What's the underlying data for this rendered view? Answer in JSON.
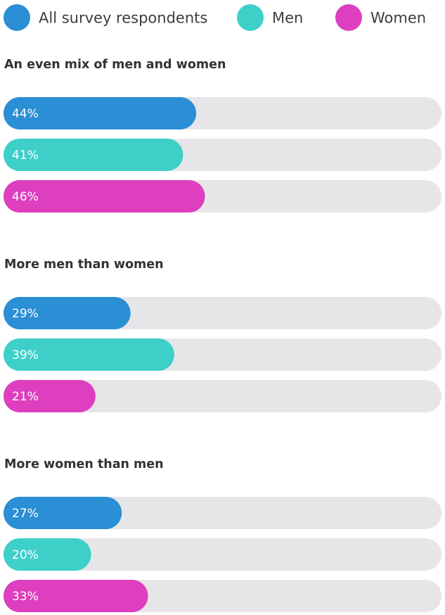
{
  "chart_data": {
    "type": "bar",
    "orientation": "horizontal",
    "value_format": "percent",
    "xlim": [
      0,
      100
    ],
    "legend_position": "top",
    "categories": [
      "An even mix of men and women",
      "More men than women",
      "More women than men"
    ],
    "series": [
      {
        "name": "All survey respondents",
        "color": "#2a8fd4",
        "values": [
          44,
          29,
          27
        ]
      },
      {
        "name": "Men",
        "color": "#3ecfc9",
        "values": [
          41,
          39,
          20
        ]
      },
      {
        "name": "Women",
        "color": "#de3fbe",
        "values": [
          46,
          21,
          33
        ]
      }
    ],
    "track_color": "#e6e6e8"
  }
}
